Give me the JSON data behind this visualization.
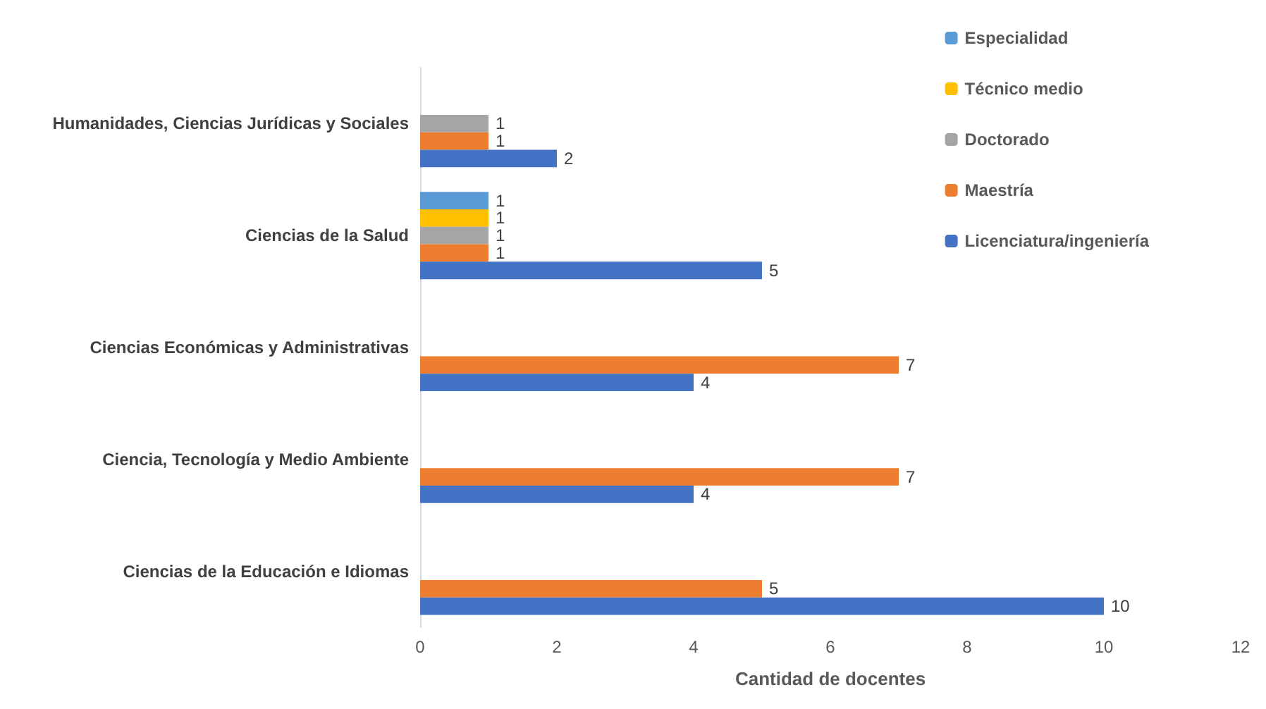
{
  "chart_data": {
    "type": "bar",
    "orientation": "horizontal",
    "xlabel": "Cantidad de docentes",
    "categories": [
      "Humanidades, Ciencias Jurídicas y Sociales",
      "Ciencias de la Salud",
      "Ciencias Económicas y Administrativas",
      "Ciencia, Tecnología y Medio Ambiente",
      "Ciencias de la Educación e Idiomas"
    ],
    "series": [
      {
        "name": "Licenciatura/ingeniería",
        "color": "#4472c4",
        "values": [
          2,
          5,
          4,
          4,
          10
        ]
      },
      {
        "name": "Maestría",
        "color": "#ed7d31",
        "values": [
          1,
          1,
          7,
          7,
          5
        ]
      },
      {
        "name": "Doctorado",
        "color": "#a5a5a5",
        "values": [
          1,
          1,
          null,
          null,
          null
        ]
      },
      {
        "name": "Técnico medio",
        "color": "#ffc000",
        "values": [
          null,
          1,
          null,
          null,
          null
        ]
      },
      {
        "name": "Especialidad",
        "color": "#5b9bd5",
        "values": [
          null,
          1,
          null,
          null,
          null
        ]
      }
    ],
    "xlim": [
      0,
      12
    ],
    "xticks": [
      0,
      2,
      4,
      6,
      8,
      10,
      12
    ],
    "grid": false,
    "legend": "top right",
    "data_labels": true
  }
}
